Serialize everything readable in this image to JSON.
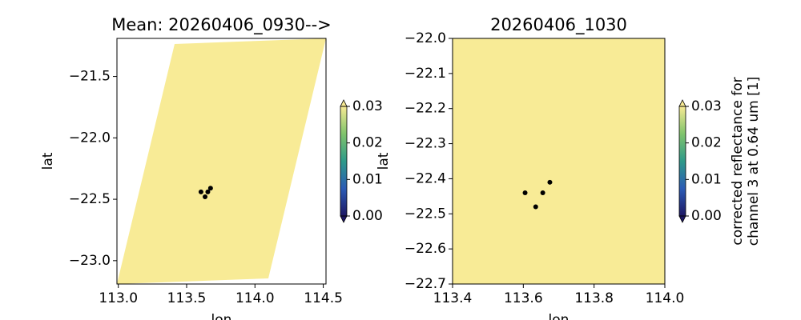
{
  "chart_data": [
    {
      "type": "scatter",
      "title": "Mean: 20260406_0930-->",
      "xlabel": "lon",
      "ylabel": "lat",
      "xlim": [
        112.99,
        114.52
      ],
      "ylim": [
        -23.19,
        -21.19
      ],
      "xticks": [
        {
          "value": 113,
          "label": "113.0"
        },
        113.5,
        {
          "value": 114,
          "label": "114.0"
        },
        114.5
      ],
      "yticks": [
        {
          "value": -21.5,
          "label": "−21.5"
        },
        {
          "value": -22,
          "label": "−22.0"
        },
        {
          "value": -22.5,
          "label": "−22.5"
        },
        {
          "value": -23,
          "label": "−23.0"
        }
      ],
      "field_color": "#f8eb96",
      "point_color": "#000000",
      "x": [
        113.605,
        113.635,
        113.655,
        113.675
      ],
      "y": [
        -22.44,
        -22.48,
        -22.44,
        -22.41
      ],
      "colorbar": {
        "clim": [
          0,
          0.03
        ],
        "ticks": [
          {
            "value": 0,
            "label": "0.00"
          },
          0.01,
          0.02,
          0.03
        ],
        "colors": [
          "#1d1763",
          "#2b5bb5",
          "#2e9a89",
          "#80c46c",
          "#f7ea94"
        ],
        "extend": "both"
      }
    },
    {
      "type": "scatter",
      "title": "20260406_1030",
      "xlabel": "lon",
      "ylabel": "lat",
      "xlim": [
        113.4,
        114.0
      ],
      "ylim": [
        -22.7,
        -22.0
      ],
      "xticks": [
        113.4,
        113.6,
        113.8,
        {
          "value": 114,
          "label": "114.0"
        }
      ],
      "yticks": [
        {
          "value": -22,
          "label": "−22.0"
        },
        {
          "value": -22.1,
          "label": "−22.1"
        },
        {
          "value": -22.2,
          "label": "−22.2"
        },
        {
          "value": -22.3,
          "label": "−22.3"
        },
        {
          "value": -22.4,
          "label": "−22.4"
        },
        {
          "value": -22.5,
          "label": "−22.5"
        },
        {
          "value": -22.6,
          "label": "−22.6"
        },
        {
          "value": -22.7,
          "label": "−22.7"
        }
      ],
      "field_color": "#f8eb96",
      "point_color": "#000000",
      "x": [
        113.605,
        113.635,
        113.655,
        113.675
      ],
      "y": [
        -22.44,
        -22.48,
        -22.44,
        -22.41
      ],
      "colorbar": {
        "clim": [
          0,
          0.03
        ],
        "ticks": [
          {
            "value": 0,
            "label": "0.00"
          },
          0.01,
          0.02,
          0.03
        ],
        "colors": [
          "#1d1763",
          "#2b5bb5",
          "#2e9a89",
          "#80c46c",
          "#f7ea94"
        ],
        "extend": "both",
        "label": [
          "corrected reflectance for",
          "channel 3 at 0.64 um [1]"
        ]
      }
    }
  ]
}
